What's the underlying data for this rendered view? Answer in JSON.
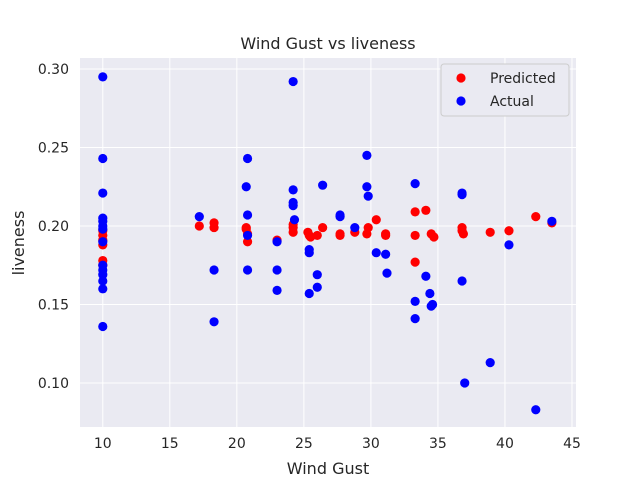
{
  "chart_data": {
    "type": "scatter",
    "title": "Wind Gust vs liveness",
    "xlabel": "Wind Gust",
    "ylabel": "liveness",
    "xlim": [
      8.3,
      45.3
    ],
    "ylim": [
      0.072,
      0.307
    ],
    "xticks": [
      10,
      15,
      20,
      25,
      30,
      35,
      40,
      45
    ],
    "xtick_labels": [
      "10",
      "15",
      "20",
      "25",
      "30",
      "35",
      "40",
      "45"
    ],
    "yticks": [
      0.1,
      0.15,
      0.2,
      0.25,
      0.3
    ],
    "ytick_labels": [
      "0.10",
      "0.15",
      "0.20",
      "0.25",
      "0.30"
    ],
    "grid": true,
    "background": "#eaeaf2",
    "legend_position": "top-right",
    "series": [
      {
        "name": "Predicted",
        "color": "#ff0000",
        "points": [
          [
            10,
            0.197
          ],
          [
            10,
            0.194
          ],
          [
            10,
            0.191
          ],
          [
            10,
            0.188
          ],
          [
            10,
            0.178
          ],
          [
            10,
            0.175
          ],
          [
            17.2,
            0.2
          ],
          [
            18.3,
            0.202
          ],
          [
            18.3,
            0.199
          ],
          [
            20.7,
            0.199
          ],
          [
            20.7,
            0.198
          ],
          [
            20.8,
            0.195
          ],
          [
            20.8,
            0.19
          ],
          [
            23,
            0.191
          ],
          [
            24.2,
            0.201
          ],
          [
            24.2,
            0.199
          ],
          [
            24.2,
            0.196
          ],
          [
            25.3,
            0.196
          ],
          [
            25.4,
            0.194
          ],
          [
            25.5,
            0.193
          ],
          [
            26,
            0.194
          ],
          [
            26.4,
            0.199
          ],
          [
            27.7,
            0.195
          ],
          [
            27.7,
            0.194
          ],
          [
            28.8,
            0.196
          ],
          [
            29.7,
            0.195
          ],
          [
            29.8,
            0.199
          ],
          [
            30.4,
            0.204
          ],
          [
            31.1,
            0.195
          ],
          [
            31.1,
            0.194
          ],
          [
            33.3,
            0.209
          ],
          [
            33.3,
            0.194
          ],
          [
            33.3,
            0.177
          ],
          [
            34.1,
            0.21
          ],
          [
            34.5,
            0.195
          ],
          [
            34.7,
            0.193
          ],
          [
            36.8,
            0.199
          ],
          [
            36.8,
            0.197
          ],
          [
            36.9,
            0.195
          ],
          [
            38.9,
            0.196
          ],
          [
            40.3,
            0.197
          ],
          [
            42.3,
            0.206
          ],
          [
            43.5,
            0.202
          ]
        ]
      },
      {
        "name": "Actual",
        "color": "#0000ff",
        "points": [
          [
            10,
            0.295
          ],
          [
            10,
            0.243
          ],
          [
            10,
            0.221
          ],
          [
            10,
            0.205
          ],
          [
            10,
            0.203
          ],
          [
            10,
            0.2
          ],
          [
            10,
            0.198
          ],
          [
            10,
            0.19
          ],
          [
            10,
            0.175
          ],
          [
            10,
            0.172
          ],
          [
            10,
            0.169
          ],
          [
            10,
            0.165
          ],
          [
            10,
            0.16
          ],
          [
            10,
            0.136
          ],
          [
            17.2,
            0.206
          ],
          [
            18.3,
            0.172
          ],
          [
            18.3,
            0.139
          ],
          [
            20.7,
            0.225
          ],
          [
            20.8,
            0.243
          ],
          [
            20.8,
            0.207
          ],
          [
            20.8,
            0.194
          ],
          [
            20.8,
            0.172
          ],
          [
            23,
            0.19
          ],
          [
            23,
            0.172
          ],
          [
            23,
            0.159
          ],
          [
            24.2,
            0.292
          ],
          [
            24.2,
            0.223
          ],
          [
            24.2,
            0.215
          ],
          [
            24.2,
            0.213
          ],
          [
            24.3,
            0.204
          ],
          [
            25.4,
            0.185
          ],
          [
            25.4,
            0.183
          ],
          [
            25.4,
            0.157
          ],
          [
            26,
            0.169
          ],
          [
            26,
            0.161
          ],
          [
            26.4,
            0.226
          ],
          [
            27.7,
            0.207
          ],
          [
            27.7,
            0.206
          ],
          [
            28.8,
            0.199
          ],
          [
            29.7,
            0.245
          ],
          [
            29.7,
            0.225
          ],
          [
            29.8,
            0.219
          ],
          [
            30.4,
            0.183
          ],
          [
            31.1,
            0.182
          ],
          [
            31.2,
            0.17
          ],
          [
            33.3,
            0.227
          ],
          [
            33.3,
            0.152
          ],
          [
            33.3,
            0.141
          ],
          [
            34.1,
            0.168
          ],
          [
            34.4,
            0.157
          ],
          [
            34.5,
            0.149
          ],
          [
            34.6,
            0.15
          ],
          [
            36.8,
            0.221
          ],
          [
            36.8,
            0.22
          ],
          [
            36.8,
            0.165
          ],
          [
            37,
            0.1
          ],
          [
            38.9,
            0.113
          ],
          [
            40.3,
            0.188
          ],
          [
            42.3,
            0.083
          ],
          [
            43.5,
            0.203
          ]
        ]
      }
    ]
  }
}
